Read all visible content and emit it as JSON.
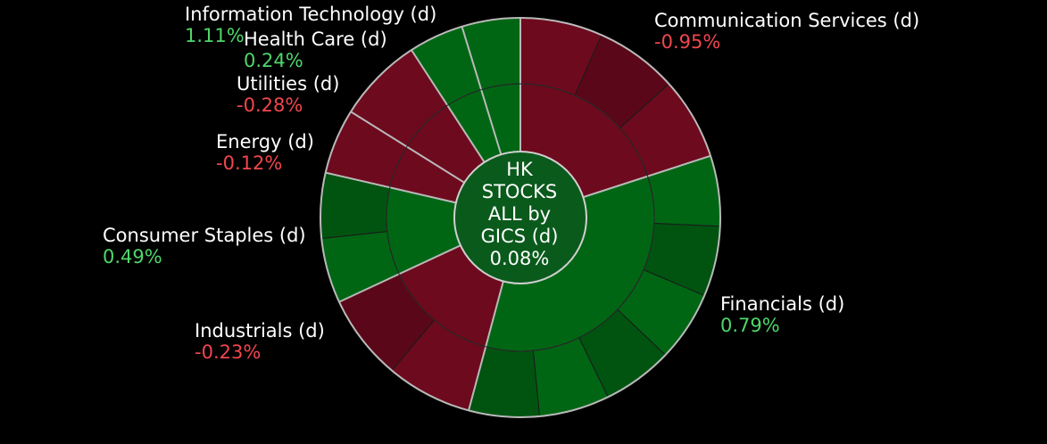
{
  "chart_data": {
    "type": "sunburst",
    "center": {
      "title_lines": [
        "HK",
        "STOCKS",
        "ALL by",
        "GICS (d)"
      ],
      "value": "0.08%"
    },
    "sectors": [
      {
        "name": "Communication Services (d)",
        "value": "-0.95%",
        "change": -0.95,
        "start_deg": 0,
        "end_deg": 72
      },
      {
        "name": "Financials (d)",
        "value": "0.79%",
        "change": 0.79,
        "start_deg": 72,
        "end_deg": 195
      },
      {
        "name": "Industrials (d)",
        "value": "-0.23%",
        "change": -0.23,
        "start_deg": 195,
        "end_deg": 245
      },
      {
        "name": "Consumer Staples (d)",
        "value": "0.49%",
        "change": 0.49,
        "start_deg": 245,
        "end_deg": 283
      },
      {
        "name": "Energy (d)",
        "value": "-0.12%",
        "change": -0.12,
        "start_deg": 283,
        "end_deg": 302
      },
      {
        "name": "Utilities (d)",
        "value": "-0.28%",
        "change": -0.28,
        "start_deg": 302,
        "end_deg": 327
      },
      {
        "name": "Health Care (d)",
        "value": "0.24%",
        "change": 0.24,
        "start_deg": 327,
        "end_deg": 343
      },
      {
        "name": "Information Technology (d)",
        "value": "1.11%",
        "change": 1.11,
        "start_deg": 343,
        "end_deg": 360
      }
    ],
    "colors": {
      "positive": "#006614",
      "negative": "#6e0a1e",
      "separator": "#b9b9b9",
      "pos_text": "#4fd66a",
      "neg_text": "#f0464e"
    }
  }
}
